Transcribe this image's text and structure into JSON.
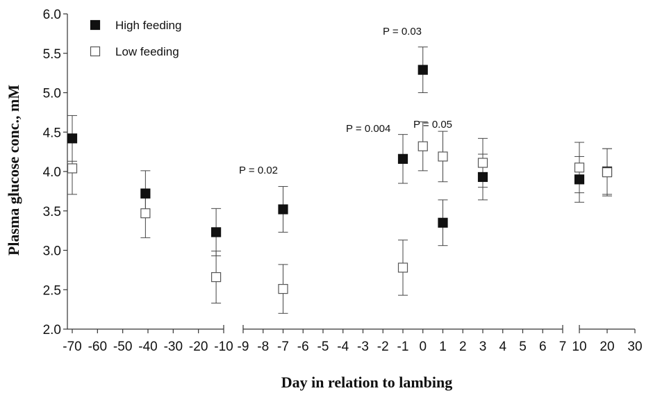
{
  "chart_data": {
    "type": "scatter",
    "title": "",
    "xlabel": "Day in relation to lambing",
    "ylabel": "Plasma glucose conc., mM",
    "ylim": [
      2.0,
      6.0
    ],
    "y_ticks": [
      "2.0",
      "2.5",
      "3.0",
      "3.5",
      "4.0",
      "4.5",
      "5.0",
      "5.5",
      "6.0"
    ],
    "x_axis_broken": true,
    "x_segments": [
      {
        "range": [
          -70,
          -10
        ],
        "ticks": [
          -70,
          -60,
          -50,
          -40,
          -30,
          -20,
          -10
        ]
      },
      {
        "range": [
          -9,
          7
        ],
        "ticks": [
          -9,
          -8,
          -7,
          -6,
          -5,
          -4,
          -3,
          -2,
          -1,
          0,
          1,
          2,
          3,
          4,
          5,
          6,
          7
        ]
      },
      {
        "range": [
          10,
          30
        ],
        "ticks": [
          10,
          20,
          30
        ]
      }
    ],
    "legend_position": "top-left",
    "series": [
      {
        "name": "High feeding",
        "marker": "filled-square",
        "color": "#111111",
        "points": [
          {
            "x": -70,
            "y": 4.42,
            "err": 0.29
          },
          {
            "x": -41,
            "y": 3.72,
            "err": 0.29
          },
          {
            "x": -13,
            "y": 3.23,
            "err": 0.3
          },
          {
            "x": -7,
            "y": 3.52,
            "err": 0.29
          },
          {
            "x": -1,
            "y": 4.16,
            "err": 0.31
          },
          {
            "x": 0,
            "y": 5.29,
            "err": 0.29
          },
          {
            "x": 1,
            "y": 3.35,
            "err": 0.29
          },
          {
            "x": 3,
            "y": 3.93,
            "err": 0.29
          },
          {
            "x": 10,
            "y": 3.9,
            "err": 0.29
          },
          {
            "x": 20,
            "y": 4.0,
            "err": 0.29
          }
        ]
      },
      {
        "name": "Low feeding",
        "marker": "open-square",
        "color": "#111111",
        "points": [
          {
            "x": -70,
            "y": 4.04,
            "err": 0.33
          },
          {
            "x": -41,
            "y": 3.47,
            "err": 0.31
          },
          {
            "x": -13,
            "y": 2.66,
            "err": 0.33
          },
          {
            "x": -7,
            "y": 2.51,
            "err": 0.31
          },
          {
            "x": -1,
            "y": 2.78,
            "err": 0.35
          },
          {
            "x": 0,
            "y": 4.32,
            "err": 0.31
          },
          {
            "x": 1,
            "y": 4.19,
            "err": 0.32
          },
          {
            "x": 3,
            "y": 4.11,
            "err": 0.31
          },
          {
            "x": 10,
            "y": 4.05,
            "err": 0.32
          },
          {
            "x": 20,
            "y": 3.99,
            "err": 0.3
          }
        ]
      }
    ],
    "annotations": [
      {
        "text": "P = 0.02",
        "x": -7,
        "y": 4.0
      },
      {
        "text": "P = 0.004",
        "x": -1,
        "y": 4.5
      },
      {
        "text": "P = 0.03",
        "x": 0,
        "y": 5.7
      },
      {
        "text": "P = 0.05",
        "x": 1,
        "y": 4.3
      }
    ]
  }
}
